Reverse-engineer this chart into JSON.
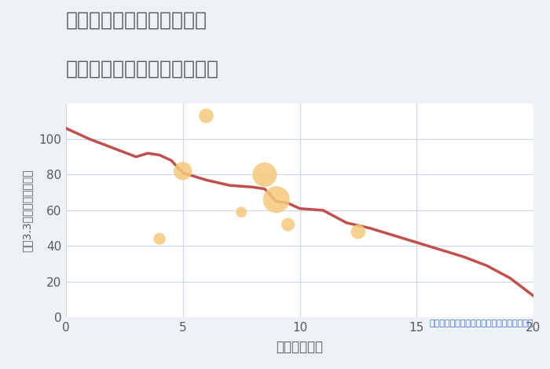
{
  "title_line1": "福岡県太宰府市都府楼南の",
  "title_line2": "駅距離別中古マンション価格",
  "xlabel": "駅距離（分）",
  "ylabel": "坪（3.3㎡）単価（万円）",
  "background_color": "#eef2f7",
  "plot_bg_color": "#ffffff",
  "line_color": "#c0504d",
  "line_x": [
    0,
    1,
    2,
    3,
    3.5,
    4,
    4.5,
    5,
    5.5,
    6,
    7,
    8,
    8.5,
    9,
    9.5,
    10,
    11,
    12,
    13,
    14,
    15,
    16,
    17,
    18,
    19,
    20
  ],
  "line_y": [
    106,
    100,
    95,
    90,
    92,
    91,
    88,
    81,
    79,
    77,
    74,
    73,
    72,
    65,
    64,
    61,
    60,
    53,
    50,
    46,
    42,
    38,
    34,
    29,
    22,
    12
  ],
  "scatter_x": [
    4,
    5,
    6,
    7.5,
    8.5,
    9,
    9.5,
    12.5
  ],
  "scatter_y": [
    44,
    82,
    113,
    59,
    80,
    66,
    52,
    48
  ],
  "scatter_sizes": [
    120,
    280,
    180,
    100,
    500,
    600,
    150,
    180
  ],
  "scatter_color": "#f5c87a",
  "scatter_alpha": 0.85,
  "annotation": "円の大きさは、取引のあった物件面積を示す",
  "annotation_color": "#4472c4",
  "xlim": [
    0,
    20
  ],
  "ylim": [
    0,
    120
  ],
  "xticks": [
    0,
    5,
    10,
    15,
    20
  ],
  "yticks": [
    0,
    20,
    40,
    60,
    80,
    100
  ],
  "title_color": "#595959",
  "title_fontsize": 18,
  "axis_label_color": "#595959",
  "grid_color": "#c9d9e8",
  "line_width": 2.5
}
